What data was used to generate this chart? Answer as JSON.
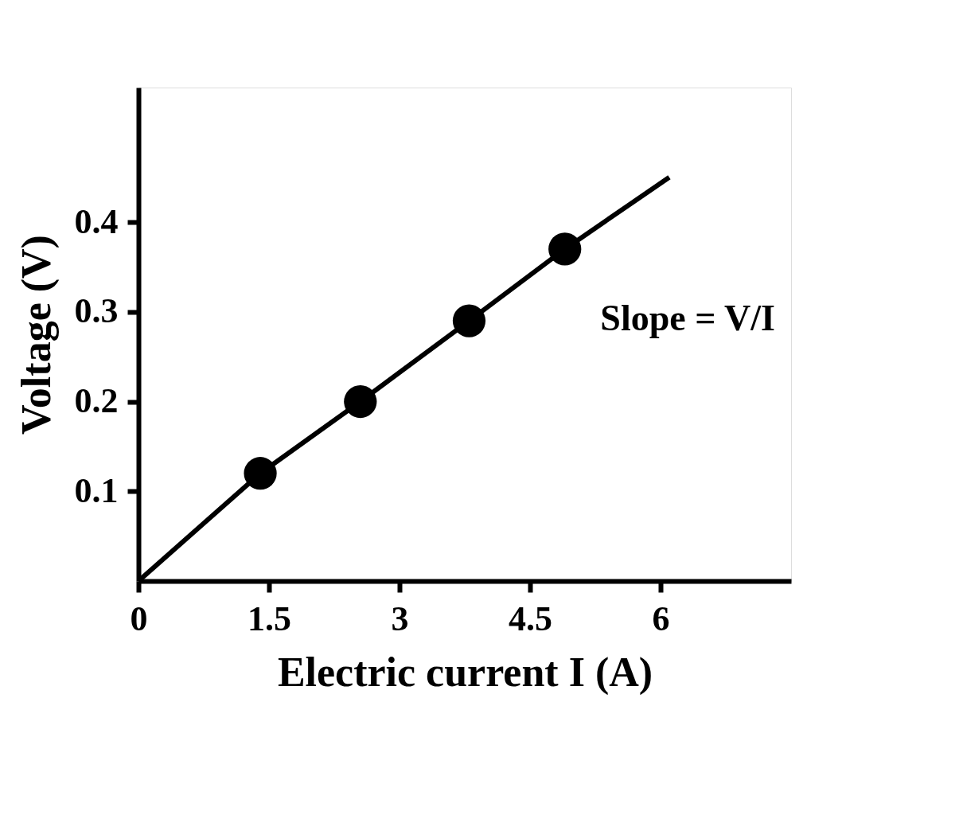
{
  "chart_data": {
    "type": "line",
    "xlabel": "Electric current I (A)",
    "ylabel": "Voltage (V)",
    "xlim": [
      0,
      7.5
    ],
    "ylim": [
      0,
      0.55
    ],
    "xticks": [
      0,
      1.5,
      3,
      4.5,
      6
    ],
    "yticks": [
      0.1,
      0.2,
      0.3,
      0.4
    ],
    "grid": false,
    "series": [
      {
        "color": "#000000",
        "marker": "none",
        "line_style": "solid",
        "x": [
          0,
          1.4,
          2.55,
          3.8,
          4.9,
          6.1
        ],
        "values": [
          0,
          0.12,
          0.2,
          0.29,
          0.37,
          0.45
        ]
      },
      {
        "type": "scatter",
        "color": "#000000",
        "marker": "circle",
        "x": [
          1.4,
          2.55,
          3.8,
          4.9
        ],
        "values": [
          0.12,
          0.2,
          0.29,
          0.37
        ]
      }
    ],
    "annotations": [
      "Slope = V/I"
    ]
  }
}
